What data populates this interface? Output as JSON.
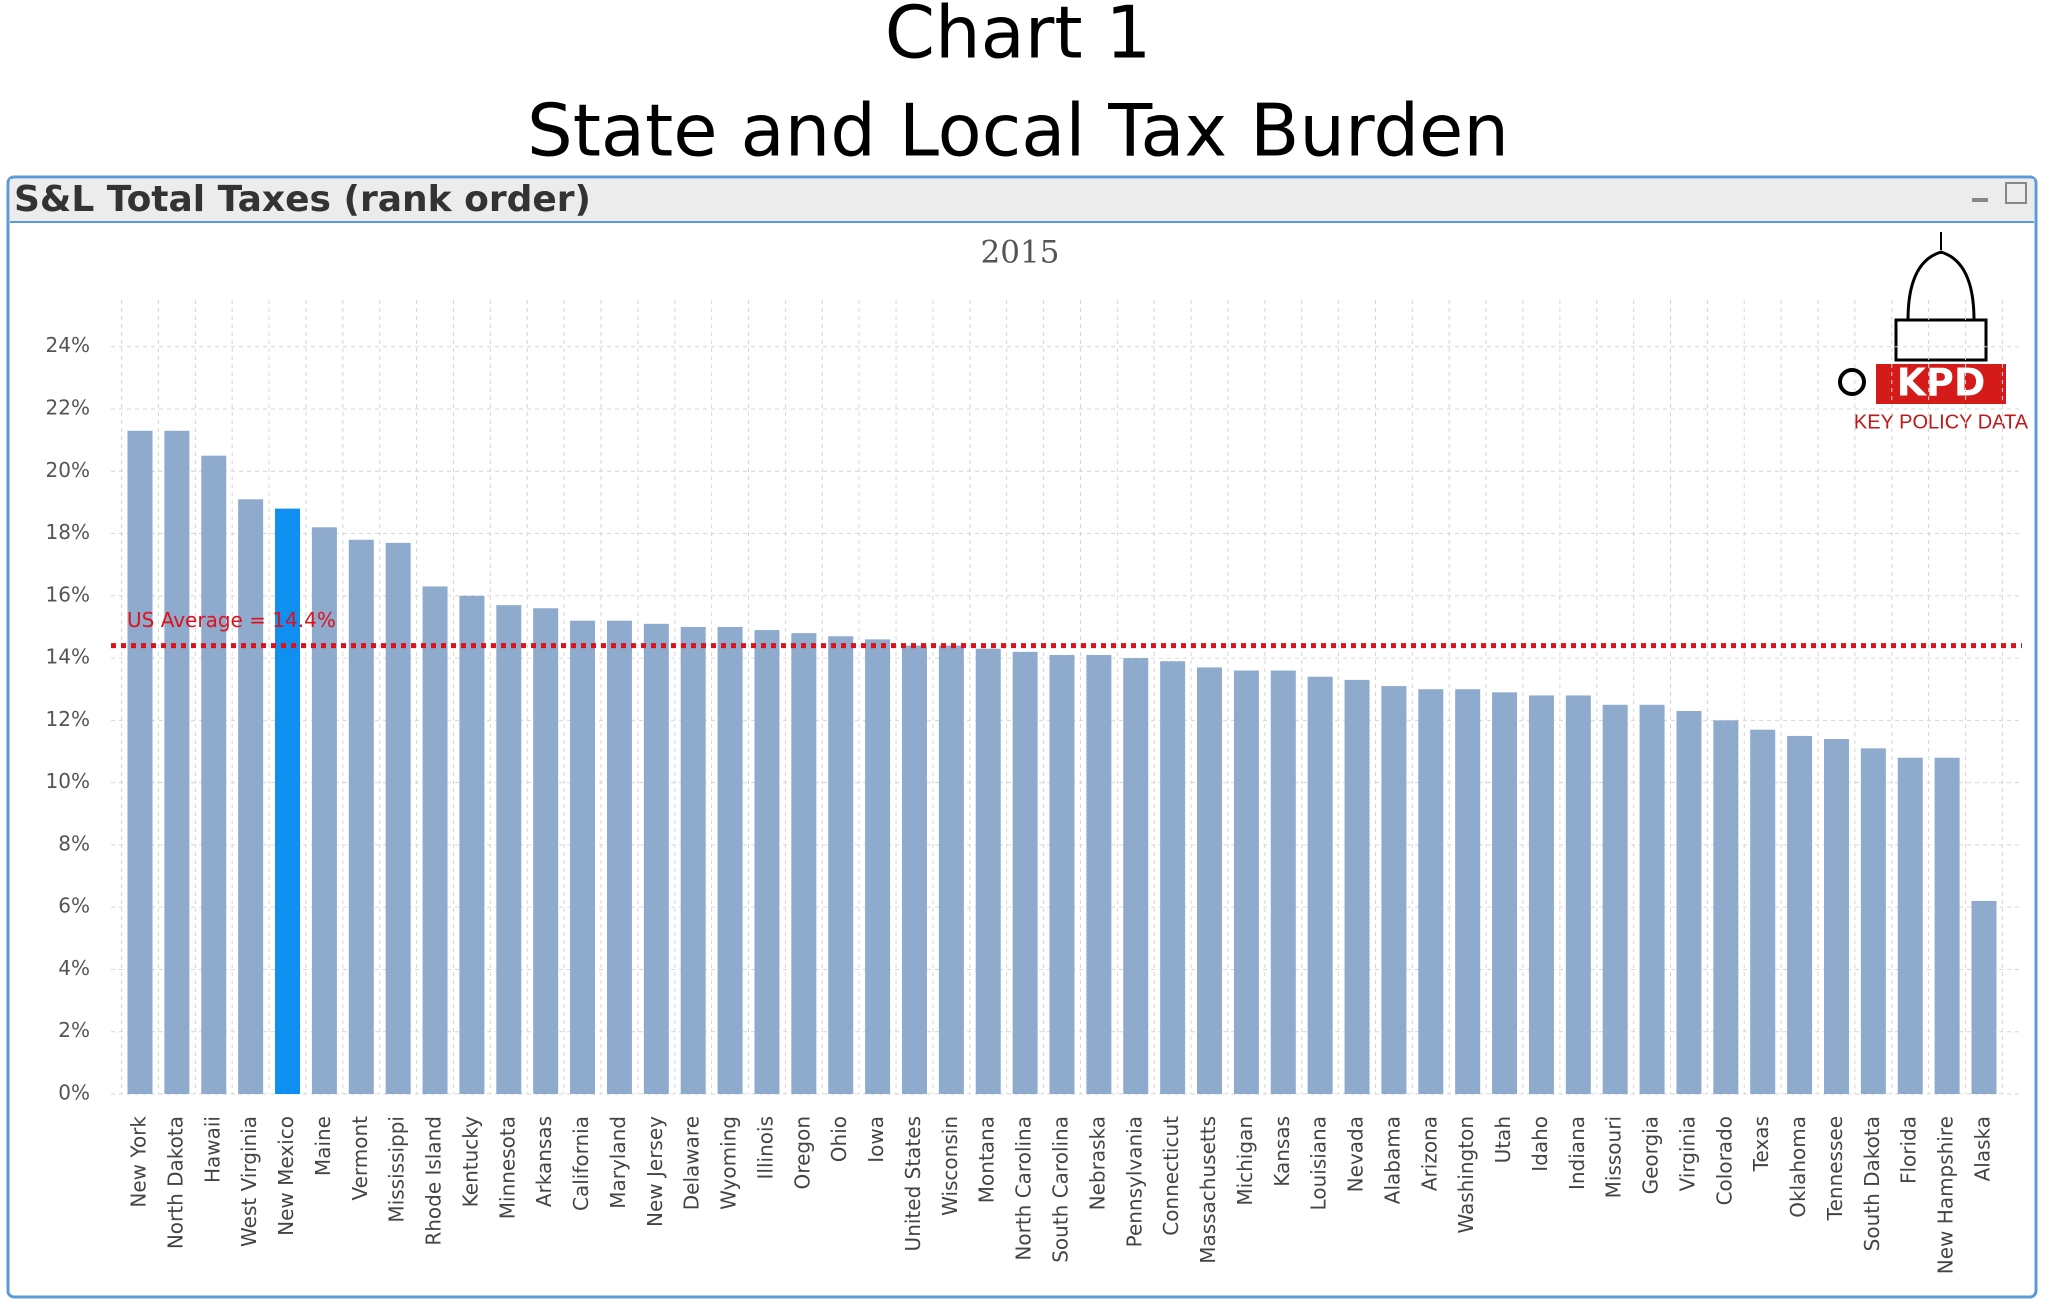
{
  "header": {
    "line1": "Chart 1",
    "line2": "State and Local Tax Burden"
  },
  "panel_title": "S&L Total Taxes (rank order)",
  "logo": {
    "mark": "KPD",
    "name": "KEY POLICY DATA"
  },
  "chart_data": {
    "type": "bar",
    "title": "2015",
    "categories": [
      "New York",
      "North Dakota",
      "Hawaii",
      "West Virginia",
      "New Mexico",
      "Maine",
      "Vermont",
      "Mississippi",
      "Rhode Island",
      "Kentucky",
      "Minnesota",
      "Arkansas",
      "California",
      "Maryland",
      "New Jersey",
      "Delaware",
      "Wyoming",
      "Illinois",
      "Oregon",
      "Ohio",
      "Iowa",
      "United States",
      "Wisconsin",
      "Montana",
      "North Carolina",
      "South Carolina",
      "Nebraska",
      "Pennsylvania",
      "Connecticut",
      "Massachusetts",
      "Michigan",
      "Kansas",
      "Louisiana",
      "Nevada",
      "Alabama",
      "Arizona",
      "Washington",
      "Utah",
      "Idaho",
      "Indiana",
      "Missouri",
      "Georgia",
      "Virginia",
      "Colorado",
      "Texas",
      "Oklahoma",
      "Tennessee",
      "South Dakota",
      "Florida",
      "New Hampshire",
      "Alaska"
    ],
    "values": [
      21.3,
      21.3,
      20.5,
      19.1,
      18.8,
      18.2,
      17.8,
      17.7,
      16.3,
      16.0,
      15.7,
      15.6,
      15.2,
      15.2,
      15.1,
      15.0,
      15.0,
      14.9,
      14.8,
      14.7,
      14.6,
      14.4,
      14.4,
      14.3,
      14.2,
      14.1,
      14.1,
      14.0,
      13.9,
      13.7,
      13.6,
      13.6,
      13.4,
      13.3,
      13.1,
      13.0,
      13.0,
      12.9,
      12.8,
      12.8,
      12.5,
      12.5,
      12.3,
      12.0,
      11.7,
      11.5,
      11.4,
      11.1,
      10.8,
      10.8,
      6.2
    ],
    "color": "#8eaacd",
    "highlight_index": 4,
    "highlight_color": "#0f8ff0",
    "average": {
      "value": 14.4,
      "label": "US Average = 14.4%",
      "color": "#e0101a"
    },
    "ylim": [
      0,
      25.5
    ],
    "yticks": [
      {
        "value": 0,
        "label": "0%"
      },
      {
        "value": 2,
        "label": "2%"
      },
      {
        "value": 4,
        "label": "4%"
      },
      {
        "value": 6,
        "label": "6%"
      },
      {
        "value": 8,
        "label": "8%"
      },
      {
        "value": 10,
        "label": "10%"
      },
      {
        "value": 12,
        "label": "12%"
      },
      {
        "value": 14,
        "label": "14%"
      },
      {
        "value": 16,
        "label": "16%"
      },
      {
        "value": 18,
        "label": "18%"
      },
      {
        "value": 20,
        "label": "20%"
      },
      {
        "value": 22,
        "label": "22%"
      },
      {
        "value": 24,
        "label": "24%"
      }
    ],
    "grid": true
  }
}
